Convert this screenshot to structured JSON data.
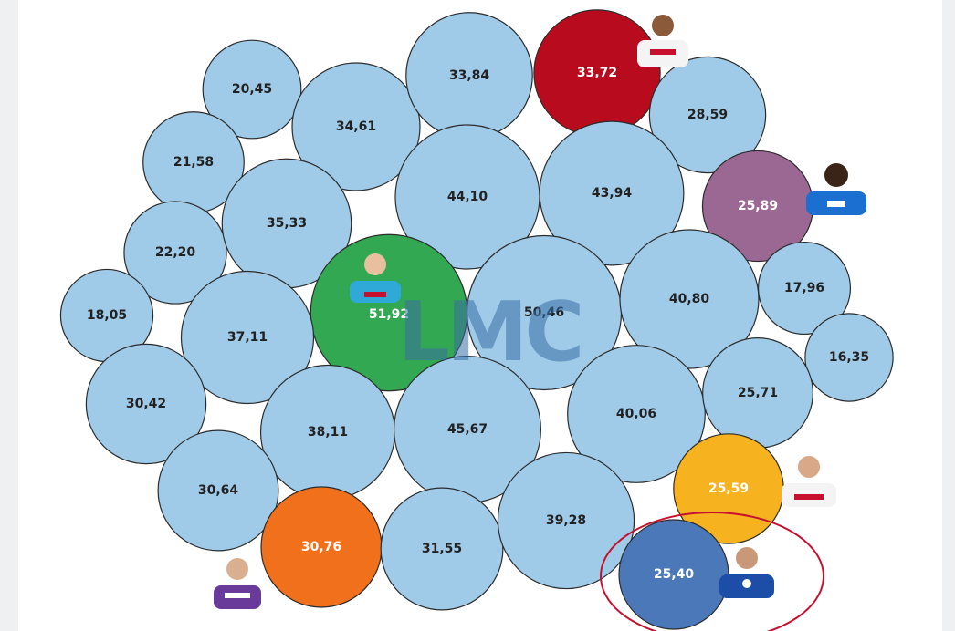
{
  "chart_data": {
    "type": "bubble",
    "values": [
      20.45,
      21.58,
      22.2,
      18.05,
      34.61,
      33.84,
      33.72,
      28.59,
      35.33,
      44.1,
      43.94,
      25.89,
      51.92,
      50.46,
      37.11,
      40.8,
      17.96,
      30.42,
      38.11,
      45.67,
      40.06,
      16.35,
      25.71,
      30.64,
      30.76,
      31.55,
      39.28,
      25.59,
      25.4
    ],
    "value_labels": [
      "20,45",
      "21,58",
      "22,20",
      "18,05",
      "34,61",
      "33,84",
      "33,72",
      "28,59",
      "35,33",
      "44,10",
      "43,94",
      "25,89",
      "51,92",
      "50,46",
      "37,11",
      "40,80",
      "17,96",
      "30,42",
      "38,11",
      "45,67",
      "40,06",
      "16,35",
      "25,71",
      "30,64",
      "30,76",
      "31,55",
      "39,28",
      "25,59",
      "25,40"
    ],
    "colors": [
      "#9fcbe9",
      "#9fcbe9",
      "#9fcbe9",
      "#9fcbe9",
      "#9fcbe9",
      "#9fcbe9",
      "#b80c1e",
      "#9fcbe9",
      "#9fcbe9",
      "#9fcbe9",
      "#9fcbe9",
      "#9a6893",
      "#33a852",
      "#9fcbe9",
      "#9fcbe9",
      "#9fcbe9",
      "#9fcbe9",
      "#9fcbe9",
      "#9fcbe9",
      "#9fcbe9",
      "#9fcbe9",
      "#9fcbe9",
      "#9fcbe9",
      "#9fcbe9",
      "#f0701c",
      "#9fcbe9",
      "#9fcbe9",
      "#f6b21f",
      "#4a78b8"
    ],
    "watermark": "LMC"
  }
}
